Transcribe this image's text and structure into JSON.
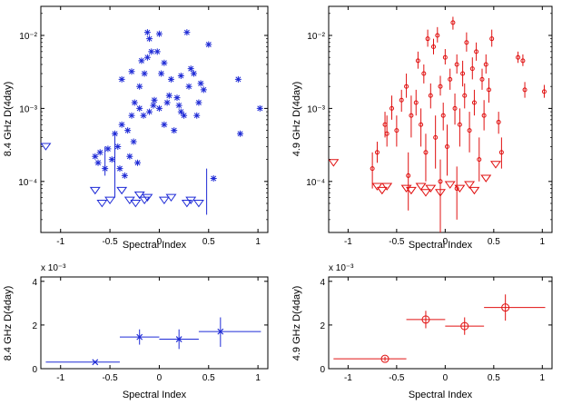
{
  "colors": {
    "blue": "#1f2bd6",
    "red": "#e01010",
    "axis": "#000000"
  },
  "chart_data": [
    {
      "type": "scatter",
      "xlabel": "Spectral Index",
      "ylabel": "8.4 GHz D(4day)",
      "yscale": "log",
      "xlim": [
        -1.2,
        1.1
      ],
      "ylim": [
        2e-05,
        0.025
      ],
      "xticks": [
        "-1",
        "-0.5",
        "0",
        "0.5",
        "1"
      ],
      "yticks": [
        "10⁻⁴",
        "10⁻³",
        "10⁻²"
      ],
      "marker": "asterisk",
      "detections": [
        {
          "x": -0.65,
          "y": 0.00022
        },
        {
          "x": -0.62,
          "y": 0.00018
        },
        {
          "x": -0.6,
          "y": 0.00025
        },
        {
          "x": -0.55,
          "y": 0.00015
        },
        {
          "x": -0.52,
          "y": 0.00028
        },
        {
          "x": -0.48,
          "y": 0.0002
        },
        {
          "x": -0.45,
          "y": 0.00045
        },
        {
          "x": -0.42,
          "y": 0.0003
        },
        {
          "x": -0.4,
          "y": 0.00015
        },
        {
          "x": -0.38,
          "y": 0.0006
        },
        {
          "x": -0.35,
          "y": 0.00012
        },
        {
          "x": -0.32,
          "y": 0.0005
        },
        {
          "x": -0.3,
          "y": 0.00022
        },
        {
          "x": -0.28,
          "y": 0.0008
        },
        {
          "x": -0.26,
          "y": 0.00035
        },
        {
          "x": -0.25,
          "y": 0.0012
        },
        {
          "x": -0.22,
          "y": 0.00018
        },
        {
          "x": -0.2,
          "y": 0.001
        },
        {
          "x": -0.18,
          "y": 0.0045
        },
        {
          "x": -0.16,
          "y": 0.0008
        },
        {
          "x": -0.15,
          "y": 0.003
        },
        {
          "x": -0.12,
          "y": 0.005
        },
        {
          "x": -0.1,
          "y": 0.0009
        },
        {
          "x": -0.08,
          "y": 0.006
        },
        {
          "x": -0.06,
          "y": 0.0011
        },
        {
          "x": -0.05,
          "y": 0.0013
        },
        {
          "x": -0.02,
          "y": 0.006
        },
        {
          "x": 0.0,
          "y": 0.001
        },
        {
          "x": 0.02,
          "y": 0.003
        },
        {
          "x": 0.05,
          "y": 0.0006
        },
        {
          "x": 0.08,
          "y": 0.0012
        },
        {
          "x": 0.1,
          "y": 0.0015
        },
        {
          "x": 0.12,
          "y": 0.0025
        },
        {
          "x": 0.15,
          "y": 0.0005
        },
        {
          "x": 0.18,
          "y": 0.0014
        },
        {
          "x": 0.2,
          "y": 0.0011
        },
        {
          "x": 0.22,
          "y": 0.0009
        },
        {
          "x": 0.25,
          "y": 0.0008
        },
        {
          "x": 0.28,
          "y": 0.011
        },
        {
          "x": 0.3,
          "y": 0.002
        },
        {
          "x": 0.32,
          "y": 0.0035
        },
        {
          "x": 0.35,
          "y": 0.003
        },
        {
          "x": 0.38,
          "y": 0.0008
        },
        {
          "x": 0.4,
          "y": 0.0012
        },
        {
          "x": 0.42,
          "y": 0.0022
        },
        {
          "x": 0.45,
          "y": 0.0018
        },
        {
          "x": 0.5,
          "y": 0.0075
        },
        {
          "x": 0.55,
          "y": 0.00011
        },
        {
          "x": 0.8,
          "y": 0.0025
        },
        {
          "x": 0.82,
          "y": 0.00045
        },
        {
          "x": 1.02,
          "y": 0.001
        },
        {
          "x": -0.28,
          "y": 0.0032
        },
        {
          "x": -0.2,
          "y": 0.002
        },
        {
          "x": -0.1,
          "y": 0.009
        },
        {
          "x": 0.0,
          "y": 0.0105
        },
        {
          "x": 0.05,
          "y": 0.0042
        },
        {
          "x": -0.38,
          "y": 0.0025
        },
        {
          "x": -0.12,
          "y": 0.011
        },
        {
          "x": 0.22,
          "y": 0.0028
        }
      ],
      "upper_limits": [
        {
          "x": -1.15,
          "y": 0.0003
        },
        {
          "x": -0.65,
          "y": 7.5e-05
        },
        {
          "x": -0.58,
          "y": 5e-05
        },
        {
          "x": -0.5,
          "y": 5.5e-05
        },
        {
          "x": -0.38,
          "y": 7.5e-05
        },
        {
          "x": -0.3,
          "y": 5.5e-05
        },
        {
          "x": -0.24,
          "y": 5e-05
        },
        {
          "x": -0.2,
          "y": 6.5e-05
        },
        {
          "x": -0.15,
          "y": 5.5e-05
        },
        {
          "x": -0.12,
          "y": 6e-05
        },
        {
          "x": 0.05,
          "y": 5.5e-05
        },
        {
          "x": 0.12,
          "y": 6e-05
        },
        {
          "x": 0.28,
          "y": 5e-05
        },
        {
          "x": 0.32,
          "y": 5.5e-05
        },
        {
          "x": 0.4,
          "y": 5e-05
        }
      ]
    },
    {
      "type": "scatter",
      "xlabel": "Spectral Index",
      "ylabel": "4.9 GHz D(4day)",
      "yscale": "log",
      "xlim": [
        -1.2,
        1.1
      ],
      "ylim": [
        2e-05,
        0.025
      ],
      "xticks": [
        "-1",
        "-0.5",
        "0",
        "0.5",
        "1"
      ],
      "yticks": [
        "10⁻⁴",
        "10⁻³",
        "10⁻²"
      ],
      "marker": "circle",
      "detections": [
        {
          "x": -0.7,
          "y": 0.00025,
          "lo": 0.00018,
          "hi": 0.00035
        },
        {
          "x": -0.62,
          "y": 0.0006,
          "lo": 0.0004,
          "hi": 0.0009
        },
        {
          "x": -0.6,
          "y": 0.00045,
          "lo": 0.0003,
          "hi": 0.0008
        },
        {
          "x": -0.55,
          "y": 0.001,
          "lo": 0.0007,
          "hi": 0.0015
        },
        {
          "x": -0.5,
          "y": 0.0005,
          "lo": 0.0003,
          "hi": 0.0008
        },
        {
          "x": -0.45,
          "y": 0.0013,
          "lo": 0.0009,
          "hi": 0.0018
        },
        {
          "x": -0.4,
          "y": 0.002,
          "lo": 0.0014,
          "hi": 0.003
        },
        {
          "x": -0.35,
          "y": 0.0008,
          "lo": 0.0004,
          "hi": 0.0015
        },
        {
          "x": -0.3,
          "y": 0.0012,
          "lo": 0.0008,
          "hi": 0.0018
        },
        {
          "x": -0.28,
          "y": 0.0045,
          "lo": 0.0035,
          "hi": 0.006
        },
        {
          "x": -0.25,
          "y": 0.0006,
          "lo": 0.0003,
          "hi": 0.001
        },
        {
          "x": -0.22,
          "y": 0.003,
          "lo": 0.0022,
          "hi": 0.004
        },
        {
          "x": -0.2,
          "y": 0.00025,
          "lo": 0.0001,
          "hi": 0.00045
        },
        {
          "x": -0.18,
          "y": 0.009,
          "lo": 0.007,
          "hi": 0.012
        },
        {
          "x": -0.15,
          "y": 0.0015,
          "lo": 0.001,
          "hi": 0.0022
        },
        {
          "x": -0.12,
          "y": 0.007,
          "lo": 0.0055,
          "hi": 0.009
        },
        {
          "x": -0.1,
          "y": 0.0004,
          "lo": 0.00015,
          "hi": 0.0008
        },
        {
          "x": -0.08,
          "y": 0.01,
          "lo": 0.008,
          "hi": 0.013
        },
        {
          "x": -0.05,
          "y": 0.002,
          "lo": 0.0015,
          "hi": 0.0028
        },
        {
          "x": -0.02,
          "y": 0.0008,
          "lo": 0.0005,
          "hi": 0.0012
        },
        {
          "x": 0.0,
          "y": 0.005,
          "lo": 0.004,
          "hi": 0.0065
        },
        {
          "x": 0.02,
          "y": 0.0003,
          "lo": 0.00012,
          "hi": 0.0006
        },
        {
          "x": 0.05,
          "y": 0.0025,
          "lo": 0.0018,
          "hi": 0.0035
        },
        {
          "x": 0.08,
          "y": 0.015,
          "lo": 0.012,
          "hi": 0.018
        },
        {
          "x": 0.1,
          "y": 0.001,
          "lo": 0.0006,
          "hi": 0.0016
        },
        {
          "x": 0.12,
          "y": 0.004,
          "lo": 0.003,
          "hi": 0.0055
        },
        {
          "x": 0.15,
          "y": 0.0006,
          "lo": 0.0003,
          "hi": 0.001
        },
        {
          "x": 0.18,
          "y": 0.003,
          "lo": 0.002,
          "hi": 0.0045
        },
        {
          "x": 0.2,
          "y": 0.0015,
          "lo": 0.001,
          "hi": 0.0022
        },
        {
          "x": 0.22,
          "y": 0.008,
          "lo": 0.006,
          "hi": 0.011
        },
        {
          "x": 0.25,
          "y": 0.0005,
          "lo": 0.00025,
          "hi": 0.0009
        },
        {
          "x": 0.28,
          "y": 0.0035,
          "lo": 0.0025,
          "hi": 0.005
        },
        {
          "x": 0.3,
          "y": 0.0012,
          "lo": 0.0008,
          "hi": 0.0018
        },
        {
          "x": 0.32,
          "y": 0.006,
          "lo": 0.0045,
          "hi": 0.008
        },
        {
          "x": 0.35,
          "y": 0.0002,
          "lo": 0.0001,
          "hi": 0.0004
        },
        {
          "x": 0.38,
          "y": 0.0025,
          "lo": 0.0018,
          "hi": 0.0035
        },
        {
          "x": 0.4,
          "y": 0.0008,
          "lo": 0.0005,
          "hi": 0.0013
        },
        {
          "x": 0.42,
          "y": 0.004,
          "lo": 0.003,
          "hi": 0.0055
        },
        {
          "x": 0.45,
          "y": 0.0018,
          "lo": 0.0012,
          "hi": 0.0026
        },
        {
          "x": 0.48,
          "y": 0.009,
          "lo": 0.007,
          "hi": 0.012
        },
        {
          "x": 0.55,
          "y": 0.00065,
          "lo": 0.00045,
          "hi": 0.0009
        },
        {
          "x": 0.58,
          "y": 0.00025,
          "lo": 0.00015,
          "hi": 0.0004
        },
        {
          "x": 0.75,
          "y": 0.005,
          "lo": 0.0042,
          "hi": 0.006
        },
        {
          "x": 0.8,
          "y": 0.0045,
          "lo": 0.0038,
          "hi": 0.0055
        },
        {
          "x": 0.82,
          "y": 0.0018,
          "lo": 0.0014,
          "hi": 0.0023
        },
        {
          "x": 1.02,
          "y": 0.0017,
          "lo": 0.0014,
          "hi": 0.0021
        },
        {
          "x": -0.75,
          "y": 0.00015,
          "lo": 8e-05,
          "hi": 0.00025
        },
        {
          "x": -0.05,
          "y": 0.0001,
          "lo": 2e-05,
          "hi": 0.0002
        },
        {
          "x": -0.38,
          "y": 0.00012,
          "lo": 4e-05,
          "hi": 0.00025
        },
        {
          "x": 0.12,
          "y": 8e-05,
          "lo": 3e-05,
          "hi": 0.00016
        }
      ],
      "upper_limits": [
        {
          "x": -1.15,
          "y": 0.00018
        },
        {
          "x": -0.7,
          "y": 8.5e-05
        },
        {
          "x": -0.65,
          "y": 7.5e-05
        },
        {
          "x": -0.6,
          "y": 8.5e-05
        },
        {
          "x": -0.4,
          "y": 8e-05
        },
        {
          "x": -0.35,
          "y": 7.5e-05
        },
        {
          "x": -0.25,
          "y": 8.5e-05
        },
        {
          "x": -0.2,
          "y": 7e-05
        },
        {
          "x": -0.15,
          "y": 8e-05
        },
        {
          "x": -0.05,
          "y": 7e-05
        },
        {
          "x": 0.05,
          "y": 9e-05
        },
        {
          "x": 0.15,
          "y": 8e-05
        },
        {
          "x": 0.25,
          "y": 9e-05
        },
        {
          "x": 0.3,
          "y": 7.5e-05
        },
        {
          "x": 0.42,
          "y": 0.00011
        },
        {
          "x": 0.52,
          "y": 0.00017
        }
      ]
    },
    {
      "type": "scatter",
      "xlabel": "Spectral Index",
      "ylabel": "8.4 GHz D(4day)",
      "multiplier": "x 10⁻³",
      "xlim": [
        -1.2,
        1.1
      ],
      "ylim": [
        0,
        4.2
      ],
      "xticks": [
        "-1",
        "-0.5",
        "0",
        "0.5",
        "1"
      ],
      "yticks": [
        "0",
        "2",
        "4"
      ],
      "marker": "cross",
      "points": [
        {
          "x": -0.65,
          "y": 0.3,
          "xlo": -1.15,
          "xhi": -0.4,
          "ylo": 0.25,
          "yhi": 0.35
        },
        {
          "x": -0.2,
          "y": 1.45,
          "xlo": -0.4,
          "xhi": 0.0,
          "ylo": 1.1,
          "yhi": 1.8
        },
        {
          "x": 0.2,
          "y": 1.35,
          "xlo": 0.0,
          "xhi": 0.4,
          "ylo": 0.9,
          "yhi": 1.8
        },
        {
          "x": 0.62,
          "y": 1.7,
          "xlo": 0.4,
          "xhi": 1.03,
          "ylo": 1.0,
          "yhi": 2.35
        }
      ]
    },
    {
      "type": "scatter",
      "xlabel": "Spectral Index",
      "ylabel": "4.9 GHz D(4day)",
      "multiplier": "x 10⁻³",
      "xlim": [
        -1.2,
        1.1
      ],
      "ylim": [
        0,
        4.2
      ],
      "xticks": [
        "-1",
        "-0.5",
        "0",
        "0.5",
        "1"
      ],
      "yticks": [
        "0",
        "2",
        "4"
      ],
      "marker": "circle-plus",
      "points": [
        {
          "x": -0.62,
          "y": 0.45,
          "xlo": -1.15,
          "xhi": -0.4,
          "ylo": 0.35,
          "yhi": 0.55
        },
        {
          "x": -0.2,
          "y": 2.25,
          "xlo": -0.4,
          "xhi": 0.0,
          "ylo": 1.85,
          "yhi": 2.65
        },
        {
          "x": 0.2,
          "y": 1.95,
          "xlo": 0.0,
          "xhi": 0.4,
          "ylo": 1.55,
          "yhi": 2.35
        },
        {
          "x": 0.62,
          "y": 2.8,
          "xlo": 0.4,
          "xhi": 1.03,
          "ylo": 2.2,
          "yhi": 3.4
        }
      ]
    }
  ]
}
